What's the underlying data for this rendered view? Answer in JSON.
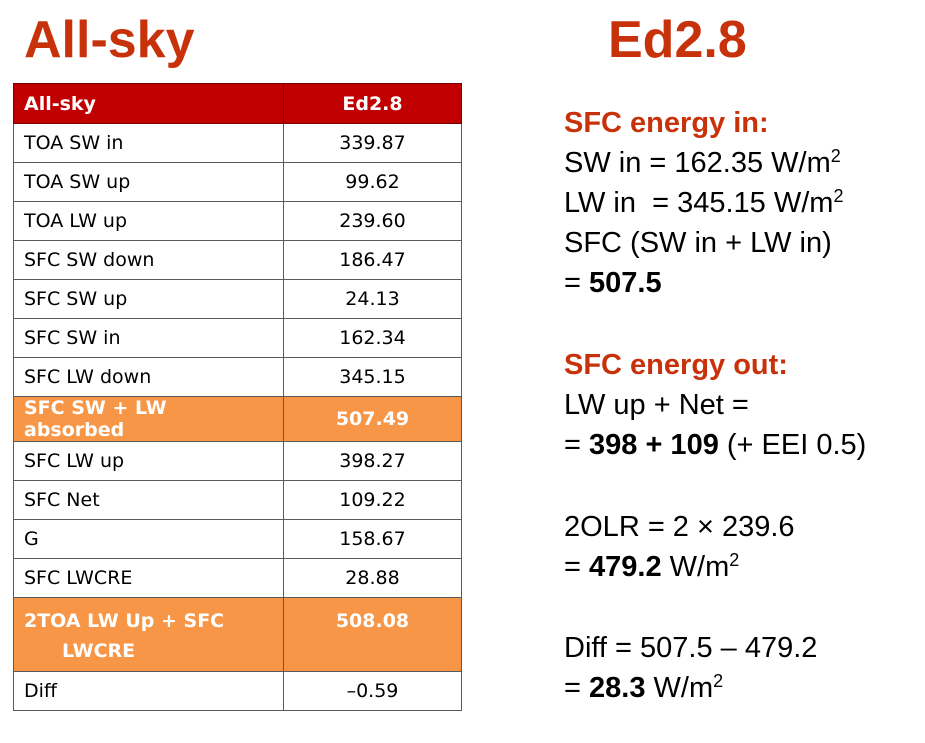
{
  "titles": {
    "left": "All-sky",
    "right": "Ed2.8"
  },
  "table": {
    "header": [
      "All-sky",
      "Ed2.8"
    ],
    "rows": [
      {
        "label": "TOA SW in",
        "value": "339.87"
      },
      {
        "label": "TOA SW up",
        "value": "99.62"
      },
      {
        "label": "TOA LW up",
        "value": "239.60"
      },
      {
        "label": "SFC SW down",
        "value": "186.47"
      },
      {
        "label": "SFC SW up",
        "value": "24.13"
      },
      {
        "label": "SFC SW in",
        "value": "162.34"
      },
      {
        "label": "SFC LW down",
        "value": "345.15"
      },
      {
        "label": "SFC SW + LW absorbed",
        "value": "507.49"
      },
      {
        "label": "SFC LW up",
        "value": "398.27"
      },
      {
        "label": "SFC Net",
        "value": "109.22"
      },
      {
        "label": "G",
        "value": "158.67"
      },
      {
        "label": "SFC LWCRE",
        "value": "28.88"
      },
      {
        "label_line1": "2TOA LW Up + SFC",
        "label_line2": "LWCRE",
        "value": "508.08"
      },
      {
        "label": "Diff",
        "value": "–0.59"
      }
    ]
  },
  "panel": {
    "energy_in": {
      "heading": "SFC energy in:",
      "sw_in": "SW in = 162.35 W/m",
      "lw_in": "LW in  = 345.15 W/m",
      "sup": "2",
      "sum_label": "SFC (SW in + LW in)",
      "eq": "= ",
      "result": "507.5"
    },
    "energy_out": {
      "heading": "SFC energy out:",
      "line1": "LW up + Net =",
      "eq": "= ",
      "bold": "398 + 109",
      "rest": " (+ EEI 0.5)"
    },
    "olr": {
      "line1": "2OLR = 2 × 239.6",
      "eq": "= ",
      "bold": "479.2",
      "unit": " W/m",
      "sup": "2"
    },
    "diff": {
      "line1": "Diff = 507.5 – 479.2",
      "eq": "= ",
      "bold": "28.3",
      "unit": " W/m",
      "sup": "2"
    }
  },
  "colors": {
    "title_red": "#c8320a",
    "header_red": "#c00000",
    "highlight_orange": "#f79646"
  }
}
